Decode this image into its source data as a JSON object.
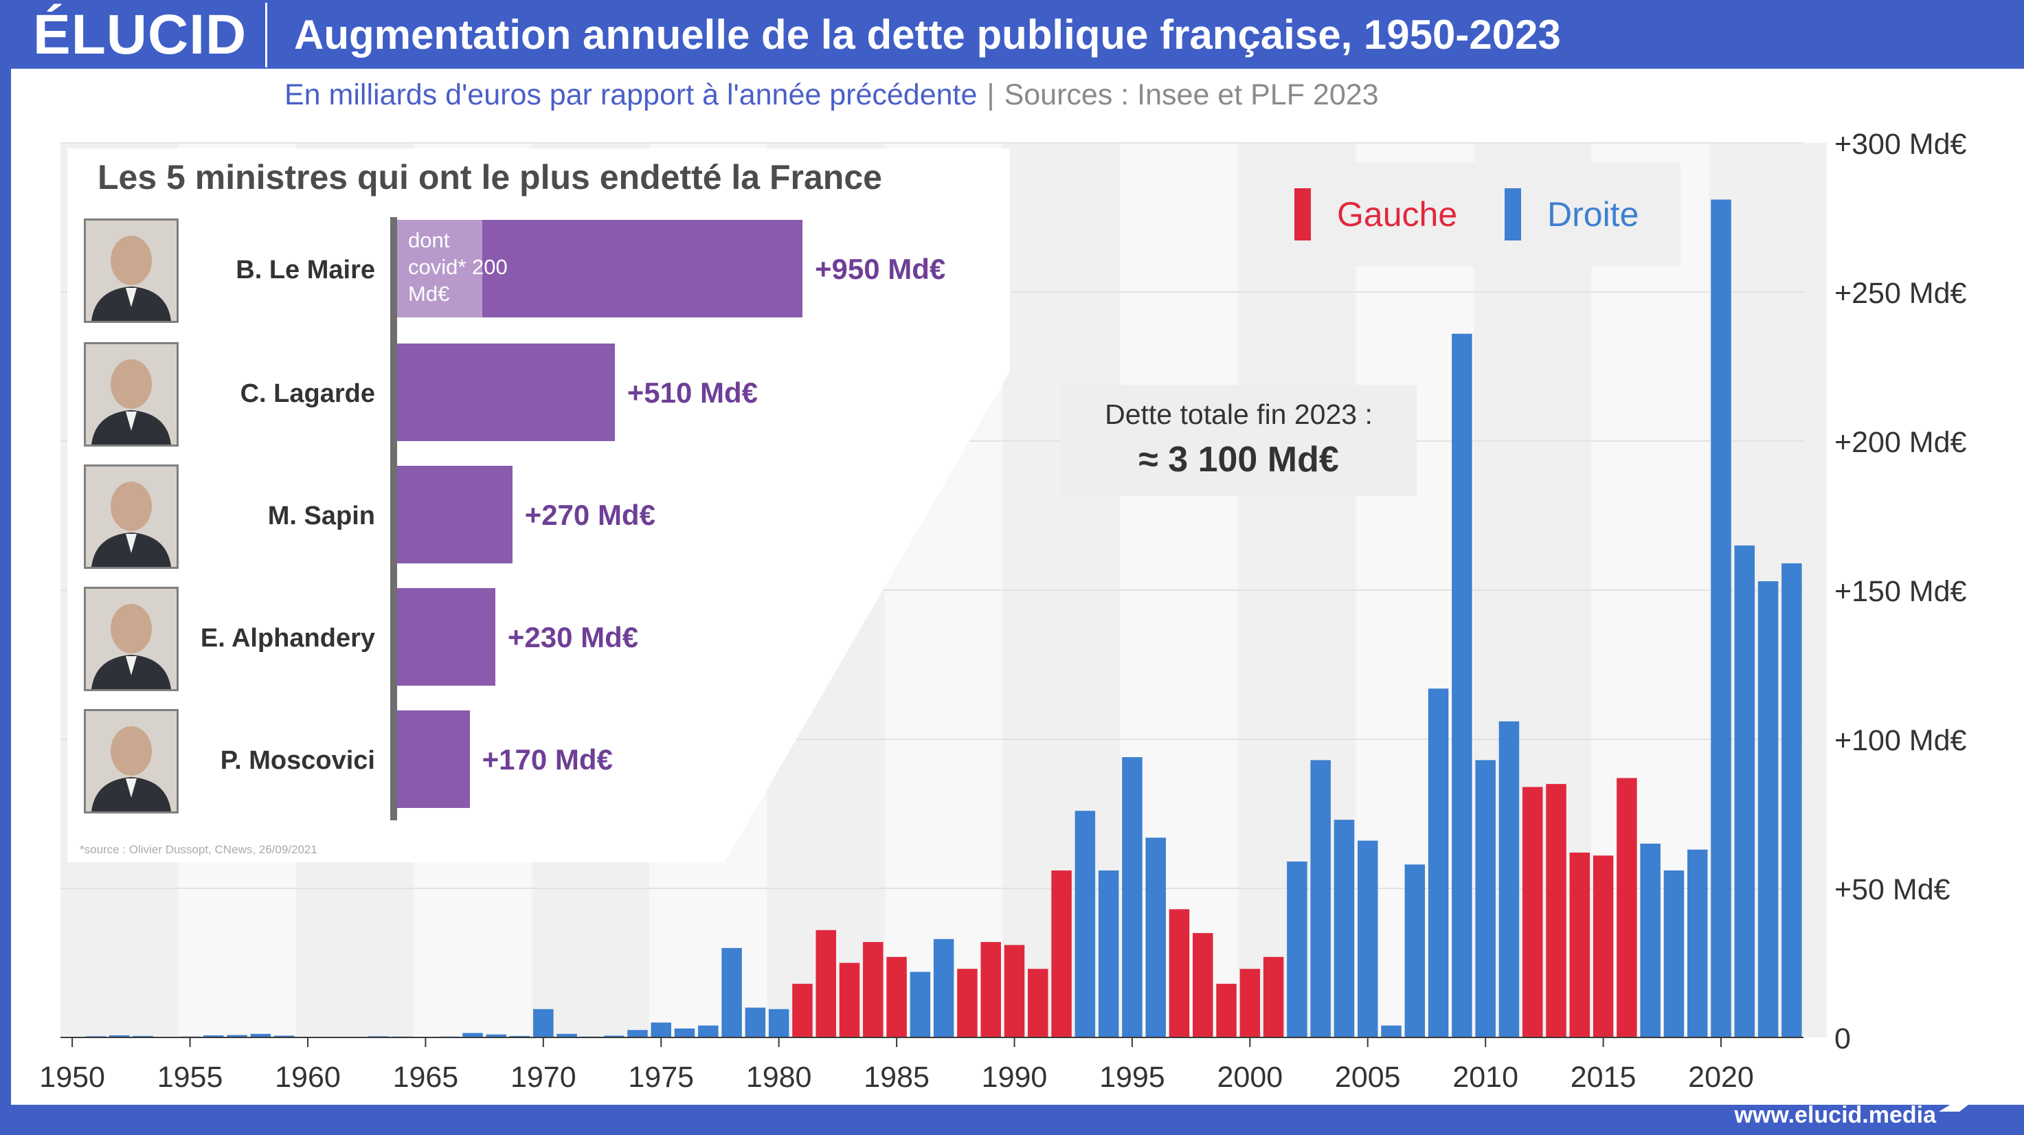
{
  "header": {
    "logo": "ÉLUCID",
    "title": "Augmentation annuelle de la dette publique française, 1950-2023"
  },
  "subtitle": {
    "units": "En milliards d'euros par rapport à l'année précédente",
    "separator": "|",
    "sources": "Sources : Insee et PLF 2023"
  },
  "legend": {
    "left": {
      "label": "Gauche",
      "color": "#e0283d"
    },
    "right": {
      "label": "Droite",
      "color": "#3d7fd0"
    }
  },
  "total_box": {
    "label": "Dette totale fin 2023 :",
    "value": "≈ 3 100 Md€"
  },
  "inset": {
    "title": "Les 5 ministres qui ont le plus endetté la France",
    "bar_color": "#8a5aad",
    "covid_color": "#b79acb",
    "covid_note": "dont covid* 200 Md€",
    "covid_value": 200,
    "source": "*source : Olivier Dussopt, CNews, 26/09/2021",
    "ministers": [
      {
        "name": "B. Le Maire",
        "value": 950,
        "label": "+950 Md€"
      },
      {
        "name": "C. Lagarde",
        "value": 510,
        "label": "+510 Md€"
      },
      {
        "name": "M. Sapin",
        "value": 270,
        "label": "+270 Md€"
      },
      {
        "name": "E. Alphandery",
        "value": 230,
        "label": "+230 Md€"
      },
      {
        "name": "P. Moscovici",
        "value": 170,
        "label": "+170 Md€"
      }
    ]
  },
  "footer": {
    "url": "www.elucid.media"
  },
  "chart_data": {
    "type": "bar",
    "title": "Augmentation annuelle de la dette publique française, 1950-2023",
    "subtitle": "En milliards d'euros par rapport à l'année précédente",
    "ylim": [
      0,
      300
    ],
    "yticks": [
      0,
      50,
      100,
      150,
      200,
      250,
      300
    ],
    "ytick_labels": [
      "0",
      "+50 Md€",
      "+100 Md€",
      "+150 Md€",
      "+200 Md€",
      "+250 Md€",
      "+300 Md€"
    ],
    "xticks": [
      1950,
      1955,
      1960,
      1965,
      1970,
      1975,
      1980,
      1985,
      1990,
      1995,
      2000,
      2005,
      2010,
      2015,
      2020
    ],
    "legend_position": "top-right",
    "grid": "vertical bands per 5 years",
    "colors": {
      "Gauche": "#e0283d",
      "Droite": "#3d7fd0"
    },
    "x": [
      1950,
      1951,
      1952,
      1953,
      1954,
      1955,
      1956,
      1957,
      1958,
      1959,
      1960,
      1961,
      1962,
      1963,
      1964,
      1965,
      1966,
      1967,
      1968,
      1969,
      1970,
      1971,
      1972,
      1973,
      1974,
      1975,
      1976,
      1977,
      1978,
      1979,
      1980,
      1981,
      1982,
      1983,
      1984,
      1985,
      1986,
      1987,
      1988,
      1989,
      1990,
      1991,
      1992,
      1993,
      1994,
      1995,
      1996,
      1997,
      1998,
      1999,
      2000,
      2001,
      2002,
      2003,
      2004,
      2005,
      2006,
      2007,
      2008,
      2009,
      2010,
      2011,
      2012,
      2013,
      2014,
      2015,
      2016,
      2017,
      2018,
      2019,
      2020,
      2021,
      2022,
      2023
    ],
    "values": [
      0.2,
      0.4,
      0.7,
      0.5,
      0.1,
      0.3,
      0.7,
      0.8,
      1.2,
      0.6,
      0.1,
      0.1,
      0.2,
      0.4,
      0.3,
      0.1,
      0.3,
      1.5,
      1.0,
      0.5,
      9.5,
      1.2,
      0.3,
      0.6,
      2.5,
      5.0,
      3.0,
      4.0,
      30,
      10,
      9.5,
      18,
      36,
      25,
      32,
      27,
      22,
      33,
      23,
      32,
      31,
      23,
      56,
      76,
      56,
      94,
      67,
      43,
      35,
      18,
      23,
      27,
      59,
      93,
      73,
      66,
      4,
      58,
      117,
      236,
      93,
      106,
      84,
      85,
      62,
      61,
      87,
      65,
      56,
      63,
      281,
      165,
      153,
      159
    ],
    "side": [
      "Droite",
      "Droite",
      "Droite",
      "Droite",
      "Droite",
      "Droite",
      "Droite",
      "Droite",
      "Droite",
      "Droite",
      "Droite",
      "Droite",
      "Droite",
      "Droite",
      "Droite",
      "Droite",
      "Droite",
      "Droite",
      "Droite",
      "Droite",
      "Droite",
      "Droite",
      "Droite",
      "Droite",
      "Droite",
      "Droite",
      "Droite",
      "Droite",
      "Droite",
      "Droite",
      "Droite",
      "Gauche",
      "Gauche",
      "Gauche",
      "Gauche",
      "Gauche",
      "Droite",
      "Droite",
      "Gauche",
      "Gauche",
      "Gauche",
      "Gauche",
      "Gauche",
      "Droite",
      "Droite",
      "Droite",
      "Droite",
      "Gauche",
      "Gauche",
      "Gauche",
      "Gauche",
      "Gauche",
      "Droite",
      "Droite",
      "Droite",
      "Droite",
      "Droite",
      "Droite",
      "Droite",
      "Droite",
      "Droite",
      "Droite",
      "Gauche",
      "Gauche",
      "Gauche",
      "Gauche",
      "Gauche",
      "Droite",
      "Droite",
      "Droite",
      "Droite",
      "Droite",
      "Droite",
      "Droite"
    ]
  }
}
